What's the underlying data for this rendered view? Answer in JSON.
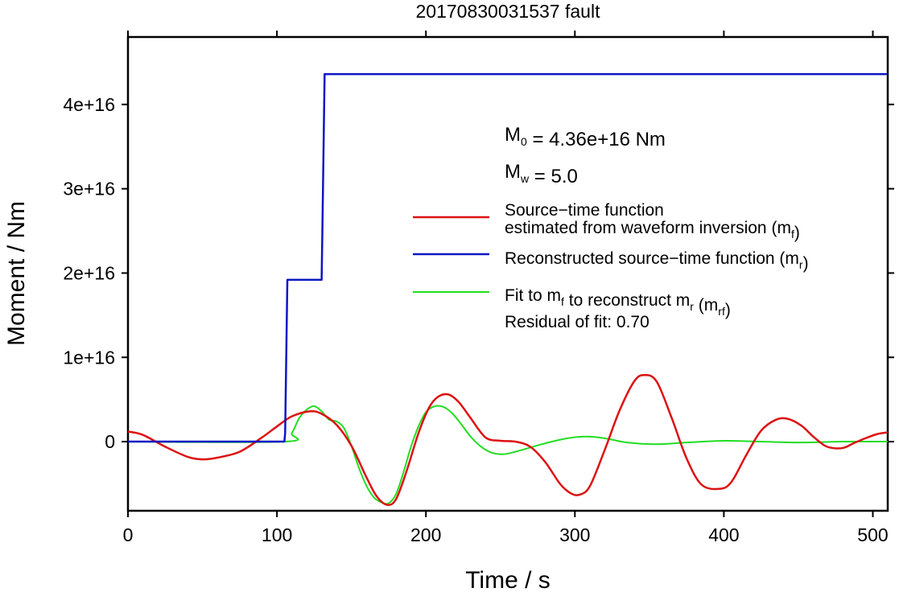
{
  "chart_data": {
    "type": "line",
    "title": "20170830031537 fault",
    "xlabel": "Time / s",
    "ylabel": "Moment / Nm",
    "xlim": [
      0,
      510
    ],
    "ylim": [
      -8200000000000000.0,
      4.8e+16
    ],
    "x_ticks": [
      0,
      100,
      200,
      300,
      400,
      500
    ],
    "x_tick_labels": [
      "0",
      "100",
      "200",
      "300",
      "400",
      "500"
    ],
    "y_ticks": [
      0,
      1e+16,
      2e+16,
      3e+16,
      4e+16
    ],
    "y_tick_labels": [
      "0",
      "1e+16",
      "2e+16",
      "3e+16",
      "4e+16"
    ],
    "grid": false,
    "legend_position": "right",
    "annotations": {
      "m0": {
        "main": "M",
        "sub": "0",
        "rest": " = 4.36e+16 Nm"
      },
      "mw": {
        "main": "M",
        "sub": "w",
        "rest": " = 5.0"
      },
      "residual": "Residual of fit: 0.70"
    },
    "series": [
      {
        "key": "mf",
        "color": "#dd1111",
        "legend_lines": [
          {
            "parts": [
              {
                "t": "Source−time function"
              }
            ]
          },
          {
            "parts": [
              {
                "t": "estimated from waveform inversion (m"
              },
              {
                "t": "f",
                "sub": true
              },
              {
                "t": ")"
              }
            ]
          }
        ],
        "x": [
          0,
          10,
          25,
          40,
          50,
          60,
          75,
          90,
          100,
          110,
          122,
          130,
          140,
          150,
          160,
          167,
          174,
          180,
          187,
          195,
          202,
          208,
          215,
          222,
          230,
          240,
          250,
          260,
          270,
          280,
          290,
          297,
          303,
          310,
          320,
          330,
          340,
          347,
          355,
          365,
          375,
          385,
          397,
          405,
          415,
          425,
          435,
          443,
          452,
          460,
          468,
          475,
          481,
          487,
          495,
          503,
          510
        ],
        "values": [
          1200000000000000.0,
          800000000000000.0,
          -600000000000000.0,
          -1800000000000000.0,
          -2100000000000000.0,
          -1900000000000000.0,
          -1200000000000000.0,
          500000000000000.0,
          1800000000000000.0,
          3000000000000000.0,
          3600000000000000.0,
          3300000000000000.0,
          2000000000000000.0,
          -500000000000000.0,
          -4200000000000000.0,
          -6500000000000000.0,
          -7500000000000000.0,
          -6800000000000000.0,
          -3500000000000000.0,
          1000000000000000.0,
          4000000000000000.0,
          5300000000000000.0,
          5600000000000000.0,
          4700000000000000.0,
          2800000000000000.0,
          500000000000000.0,
          100000000000000.0,
          0,
          -600000000000000.0,
          -2400000000000000.0,
          -5000000000000000.0,
          -6100000000000000.0,
          -6300000000000000.0,
          -5300000000000000.0,
          -1000000000000000.0,
          3700000000000000.0,
          7200000000000000.0,
          7900000000000000.0,
          7100000000000000.0,
          2800000000000000.0,
          -2000000000000000.0,
          -5100000000000000.0,
          -5600000000000000.0,
          -4800000000000000.0,
          -1600000000000000.0,
          1300000000000000.0,
          2600000000000000.0,
          2700000000000000.0,
          1900000000000000.0,
          600000000000000.0,
          -500000000000000.0,
          -800000000000000.0,
          -700000000000000.0,
          -200000000000000.0,
          400000000000000.0,
          900000000000000.0,
          1100000000000000.0
        ]
      },
      {
        "key": "mr",
        "color": "#0c16c4",
        "legend_lines": [
          {
            "parts": [
              {
                "t": "Reconstructed source−time function (m"
              },
              {
                "t": "r",
                "sub": true
              },
              {
                "t": ")"
              }
            ]
          }
        ],
        "x": [
          0,
          105,
          105.5,
          107,
          130,
          130.5,
          132,
          510
        ],
        "values": [
          0,
          0,
          1000000000000000.0,
          1.92e+16,
          1.92e+16,
          2.5e+16,
          4.36e+16,
          4.36e+16
        ]
      },
      {
        "key": "mrf",
        "color": "#22dd22",
        "legend_lines": [
          {
            "parts": [
              {
                "t": "Fit to m"
              },
              {
                "t": "f",
                "sub": true
              },
              {
                "t": " to reconstruct m"
              },
              {
                "t": "r",
                "sub": true
              },
              {
                "t": " (m"
              },
              {
                "t": "rf",
                "sub": true
              },
              {
                "t": ")"
              }
            ]
          }
        ],
        "x": [
          0,
          105,
          110,
          115,
          120,
          125,
          130,
          135,
          140,
          145,
          150,
          155,
          160,
          165,
          170,
          175,
          180,
          185,
          190,
          195,
          200,
          206,
          212,
          218,
          224,
          230,
          237,
          244,
          252,
          260,
          270,
          280,
          295,
          308,
          320,
          335,
          355,
          375,
          400,
          425,
          450,
          480,
          510
        ],
        "values": [
          0,
          0,
          1000000000000000.0,
          2800000000000000.0,
          3800000000000000.0,
          4200000000000000.0,
          3600000000000000.0,
          2600000000000000.0,
          2400000000000000.0,
          1600000000000000.0,
          -500000000000000.0,
          -3100000000000000.0,
          -5200000000000000.0,
          -6600000000000000.0,
          -7200000000000000.0,
          -7300000000000000.0,
          -6200000000000000.0,
          -3600000000000000.0,
          -600000000000000.0,
          1800000000000000.0,
          3500000000000000.0,
          4200000000000000.0,
          4100000000000000.0,
          3300000000000000.0,
          2000000000000000.0,
          600000000000000.0,
          -600000000000000.0,
          -1300000000000000.0,
          -1500000000000000.0,
          -1200000000000000.0,
          -700000000000000.0,
          -200000000000000.0,
          400000000000000.0,
          600000000000000.0,
          400000000000000.0,
          -100000000000000.0,
          -300000000000000.0,
          -100000000000000.0,
          100000000000000.0,
          0,
          -100000000000000.0,
          0,
          0
        ]
      }
    ]
  }
}
